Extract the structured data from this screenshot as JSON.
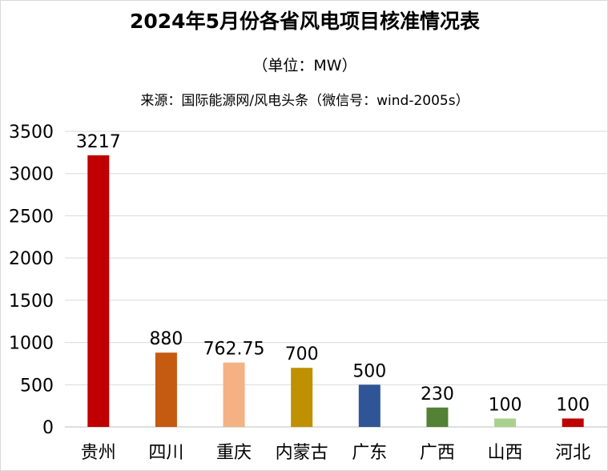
{
  "chart_data": {
    "type": "bar",
    "title": "2024年5月份各省风电项目核准情况表",
    "subtitle": "（单位：MW）",
    "source": "来源：国际能源网/风电头条（微信号：wind-2005s）",
    "categories": [
      "贵州",
      "四川",
      "重庆",
      "内蒙古",
      "广东",
      "广西",
      "山西",
      "河北"
    ],
    "values": [
      3217,
      880,
      762.75,
      700,
      500,
      230,
      100,
      100
    ],
    "data_labels": [
      "3217",
      "880",
      "762.75",
      "700",
      "500",
      "230",
      "100",
      "100"
    ],
    "colors": [
      "#C00000",
      "#C55A11",
      "#F4B183",
      "#BF9000",
      "#2F5597",
      "#538135",
      "#A9D18E",
      "#C00000"
    ],
    "ylim": [
      0,
      3500
    ],
    "yticks": [
      0,
      500,
      1000,
      1500,
      2000,
      2500,
      3000,
      3500
    ],
    "grid": true,
    "legend": "none",
    "xlabel": "",
    "ylabel": ""
  }
}
